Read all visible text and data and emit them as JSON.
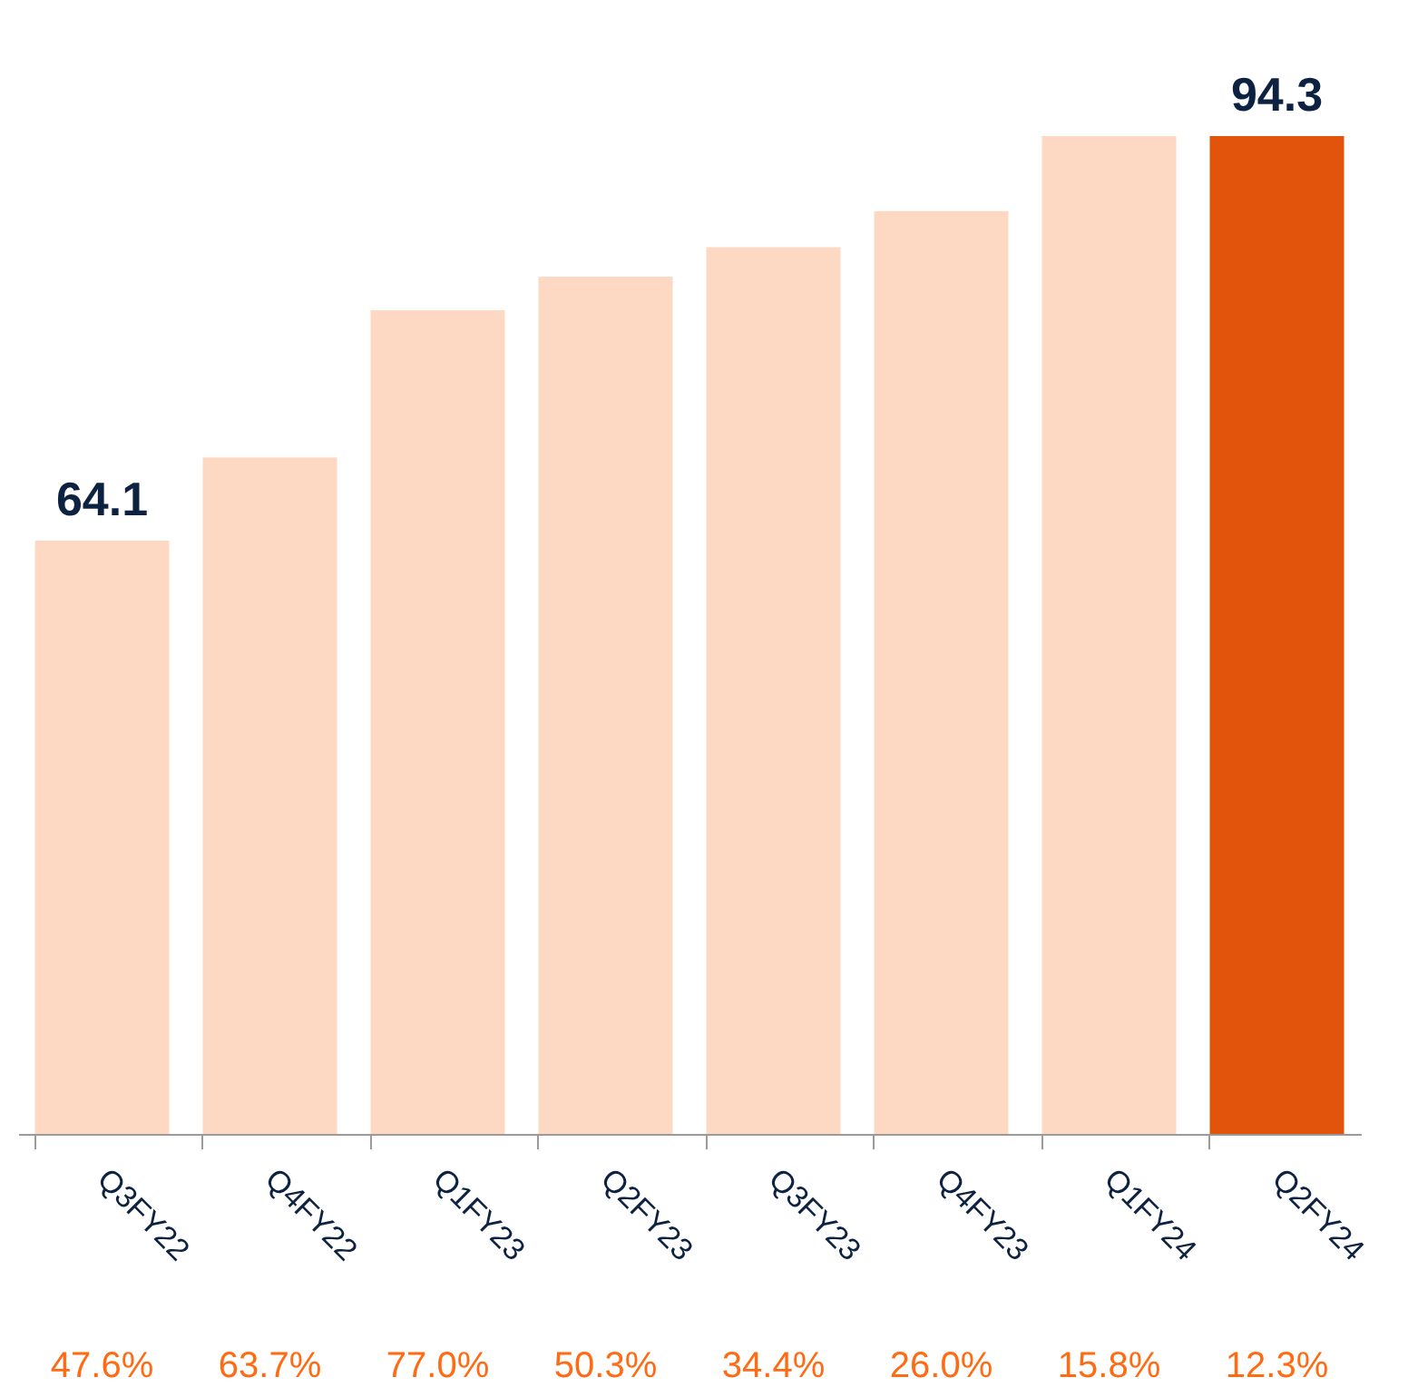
{
  "chart_data": {
    "type": "bar",
    "categories": [
      "Q3FY22",
      "Q4FY22",
      "Q1FY23",
      "Q2FY23",
      "Q3FY23",
      "Q4FY23",
      "Q1FY24",
      "Q2FY24"
    ],
    "values": [
      64.1,
      70.3,
      81.3,
      83.8,
      86.0,
      88.7,
      94.3,
      94.3
    ],
    "value_labels": [
      "64.1",
      null,
      null,
      null,
      null,
      null,
      null,
      "94.3"
    ],
    "colors": [
      "#fdd9c3",
      "#fdd9c3",
      "#fdd9c3",
      "#fdd9c3",
      "#fdd9c3",
      "#fdd9c3",
      "#fdd9c3",
      "#e2530b"
    ],
    "ylim": [
      19.8,
      94.3
    ],
    "grid": false,
    "tick_labels": "x",
    "annotations": [
      "47.6%",
      "63.7%",
      "77.0%",
      "50.3%",
      "34.4%",
      "26.0%",
      "15.8%",
      "12.3%"
    ]
  }
}
